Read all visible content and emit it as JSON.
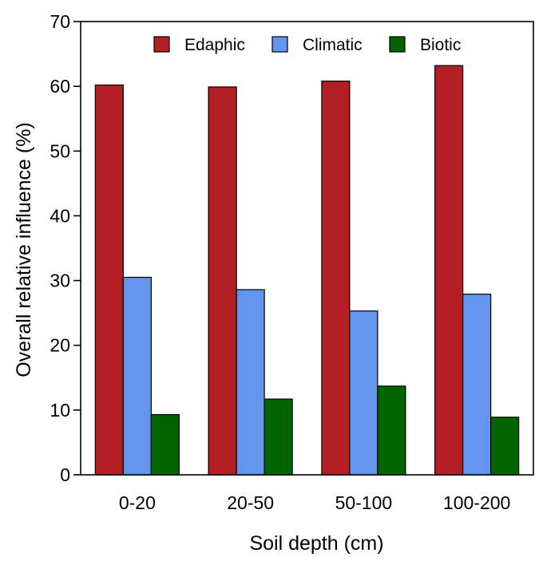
{
  "chart_data": {
    "type": "bar",
    "title": "",
    "xlabel": "Soil depth (cm)",
    "ylabel": "Overall relative influence (%)",
    "categories": [
      "0-20",
      "20-50",
      "50-100",
      "100-200"
    ],
    "series": [
      {
        "name": "Edaphic",
        "color": "#b22025",
        "values": [
          60.2,
          59.9,
          60.8,
          63.2
        ]
      },
      {
        "name": "Climatic",
        "color": "#6495ed",
        "values": [
          30.5,
          28.6,
          25.3,
          27.9
        ]
      },
      {
        "name": "Biotic",
        "color": "#006400",
        "values": [
          9.3,
          11.7,
          13.7,
          8.9
        ]
      }
    ],
    "ylim": [
      0,
      70
    ],
    "yticks": [
      0,
      10,
      20,
      30,
      40,
      50,
      60,
      70
    ],
    "grid": false,
    "legend_position": "top"
  }
}
